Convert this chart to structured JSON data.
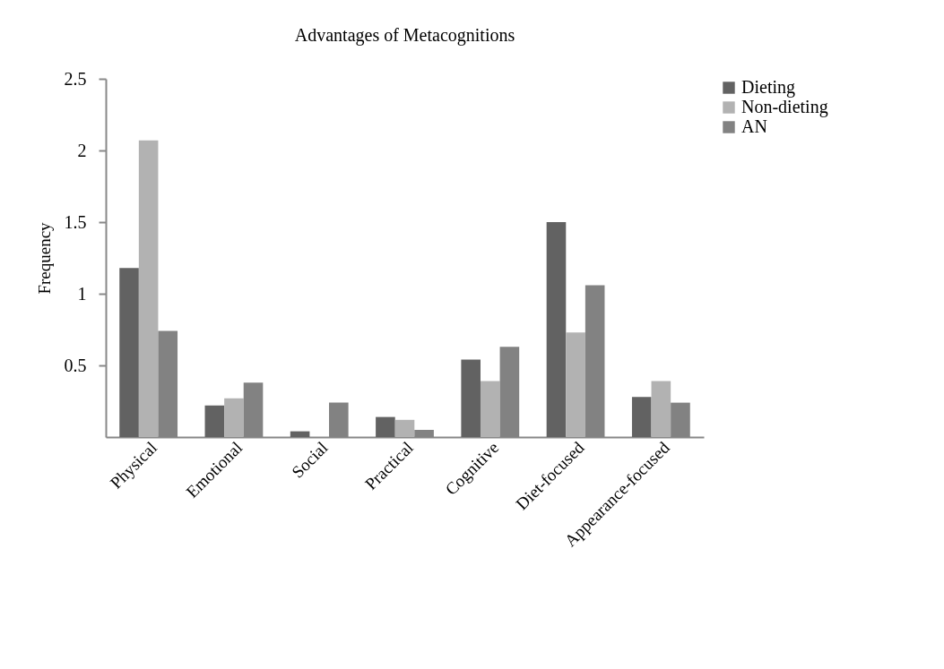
{
  "chart_data": {
    "type": "bar",
    "title": "Advantages of Metacognitions",
    "ylabel": "Frequency",
    "categories": [
      "Physical",
      "Emotional",
      "Social",
      "Practical",
      "Cognitive",
      "Diet-focused",
      "Appearance-focused"
    ],
    "series": [
      {
        "name": "Dieting",
        "color": "#626262",
        "values": [
          1.18,
          0.22,
          0.04,
          0.14,
          0.54,
          1.5,
          0.28
        ]
      },
      {
        "name": "Non-dieting",
        "color": "#b2b2b2",
        "values": [
          2.07,
          0.27,
          0,
          0.12,
          0.39,
          0.73,
          0.39
        ]
      },
      {
        "name": "AN",
        "color": "#828282",
        "values": [
          0.74,
          0.38,
          0.24,
          0.05,
          0.63,
          1.06,
          0.24
        ]
      }
    ],
    "ylim": [
      0,
      2.5
    ],
    "yticks": [
      0.5,
      1,
      1.5,
      2,
      2.5
    ],
    "grid": false,
    "legend": "right"
  }
}
